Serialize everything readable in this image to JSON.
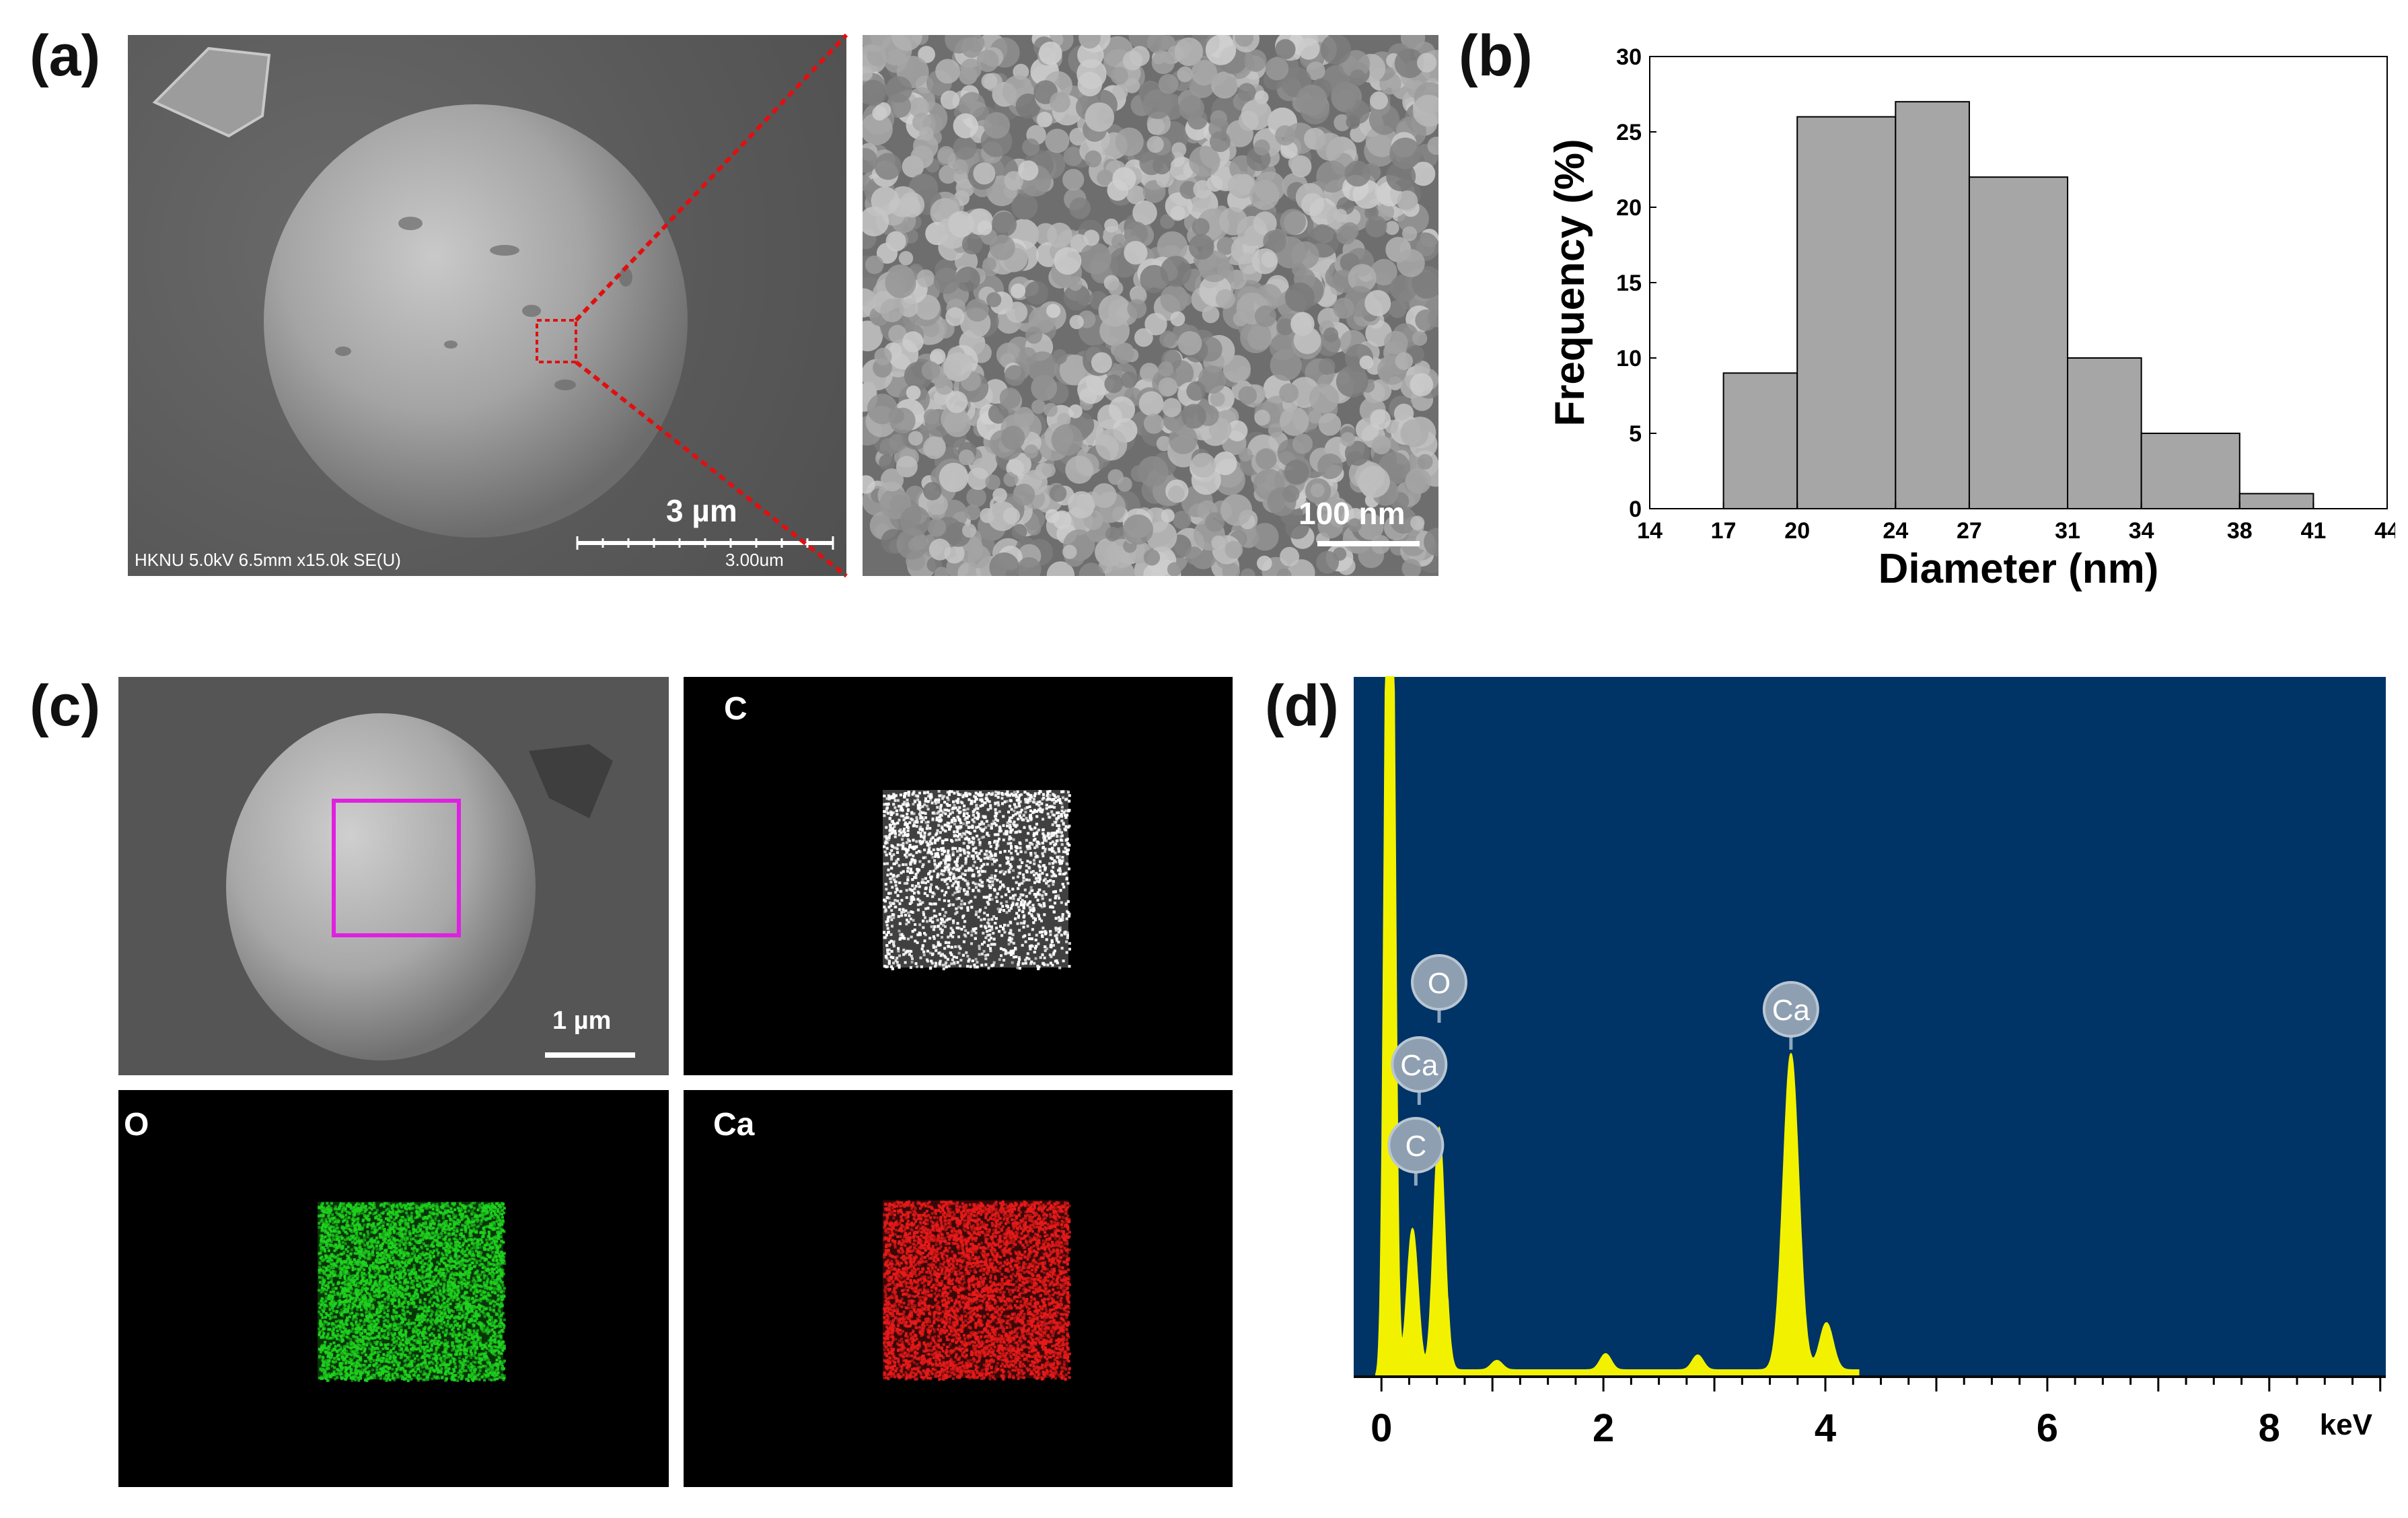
{
  "panels": {
    "a": {
      "letter": "(a)",
      "scale_main": "3 µm",
      "scale_sub": "3.00um",
      "footer": "HKNU 5.0kV 6.5mm x15.0k SE(U)",
      "scale_zoom": "100 nm"
    },
    "b": {
      "letter": "(b)"
    },
    "c": {
      "letter": "(c)",
      "scale": "1 µm",
      "map_c": "C",
      "map_o": "O",
      "map_ca": "Ca"
    },
    "d": {
      "letter": "(d)",
      "unit": "keV",
      "peak_labels": [
        "O",
        "Ca",
        "C",
        "Ca"
      ]
    }
  },
  "colors": {
    "bar": "#a6a6a6",
    "eds_bg": "#003366",
    "eds_trace": "#f2f200",
    "map_c": "#ffffff",
    "map_o": "#1fd21f",
    "map_ca": "#e81a1a",
    "highlight_box": "#e020e0",
    "zoom_line": "#e01010"
  },
  "chart_data": [
    {
      "type": "bar",
      "xlabel": "Diameter (nm)",
      "ylabel": "Frequency (%)",
      "xticks": [
        14,
        17,
        20,
        24,
        27,
        31,
        34,
        38,
        41,
        44
      ],
      "bins": [
        [
          17,
          20
        ],
        [
          20,
          24
        ],
        [
          24,
          27
        ],
        [
          27,
          31
        ],
        [
          31,
          34
        ],
        [
          34,
          38
        ],
        [
          38,
          41
        ]
      ],
      "values": [
        9,
        26,
        27,
        22,
        10,
        5,
        1
      ],
      "xlim": [
        14,
        44
      ],
      "ylim": [
        0,
        30
      ],
      "yticks": [
        0,
        5,
        10,
        15,
        20,
        25,
        30
      ]
    },
    {
      "type": "line",
      "xlabel": "keV",
      "xticks": [
        0,
        2,
        4,
        6,
        8
      ],
      "xlim": [
        -0.25,
        9.05
      ],
      "peaks": [
        {
          "element": "C",
          "energy": 0.28
        },
        {
          "element": "O",
          "energy": 0.52
        },
        {
          "element": "Ca",
          "energy": 0.34
        },
        {
          "element": "Ca",
          "energy": 3.69
        }
      ]
    }
  ]
}
